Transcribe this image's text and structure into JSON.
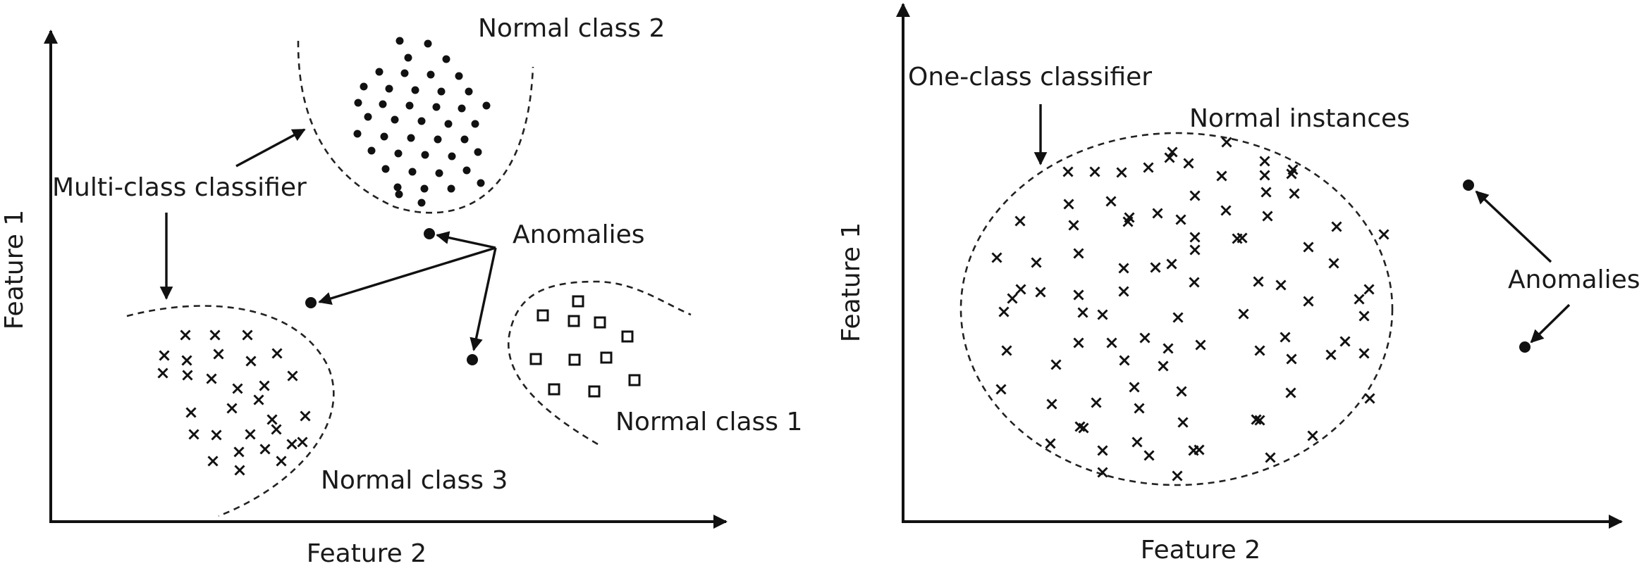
{
  "left_panel": {
    "y_axis_label": "Feature 1",
    "x_axis_label": "Feature 2",
    "labels": {
      "normal_class_1": "Normal class 1",
      "normal_class_2": "Normal class 2",
      "normal_class_3": "Normal class 3",
      "classifier": "Multi-class classifier",
      "anomalies": "Anomalies"
    }
  },
  "right_panel": {
    "y_axis_label": "Feature 1",
    "x_axis_label": "Feature 2",
    "labels": {
      "classifier": "One-class classifier",
      "normal": "Normal instances",
      "anomalies": "Anomalies"
    }
  }
}
